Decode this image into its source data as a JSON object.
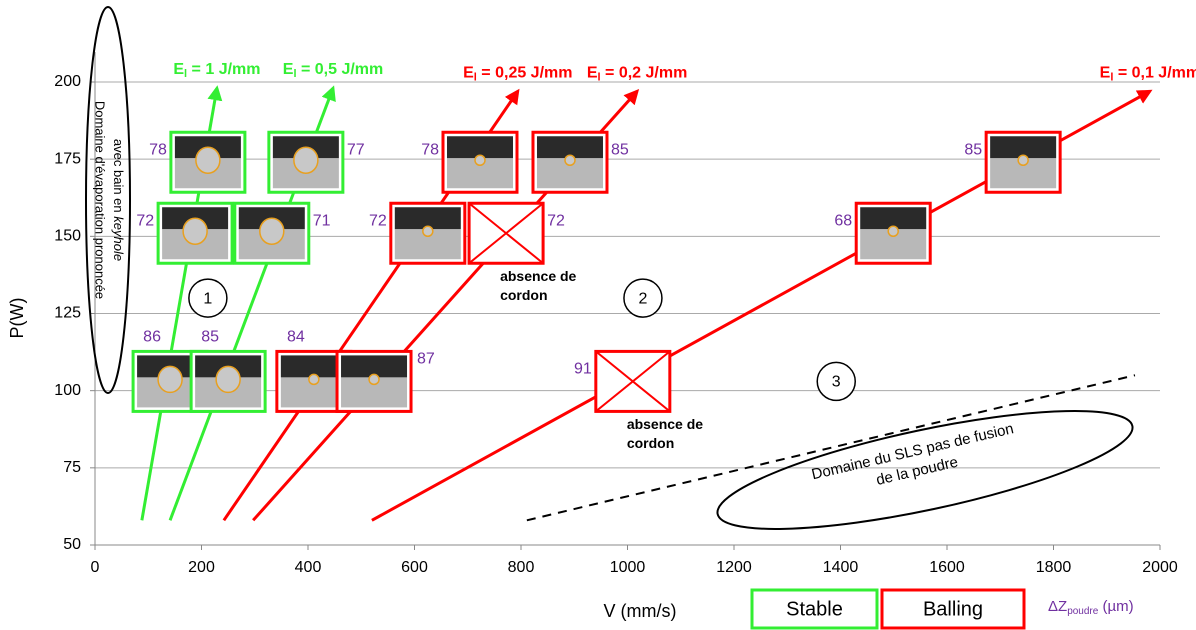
{
  "chart_data": {
    "type": "line",
    "x_label": "V (mm/s)",
    "y_label": "P(W)",
    "xlim": [
      0,
      2000
    ],
    "ylim": [
      50,
      200
    ],
    "xticks": [
      0,
      200,
      400,
      600,
      800,
      1000,
      1200,
      1400,
      1600,
      1800,
      2000
    ],
    "yticks": [
      50,
      75,
      100,
      125,
      150,
      175,
      200
    ],
    "grid": true,
    "series": [
      {
        "name_main": "E",
        "name_sub": "l",
        "name_rest": " = 1 J/mm",
        "color": "#33ee33",
        "x": [
          88,
          229
        ],
        "values": [
          58,
          198
        ]
      },
      {
        "name_main": "E",
        "name_sub": "l",
        "name_rest": " = 0,5 J/mm",
        "color": "#33ee33",
        "x": [
          141,
          447
        ],
        "values": [
          58,
          198
        ]
      },
      {
        "name_main": "E",
        "name_sub": "l",
        "name_rest": " = 0,25 J/mm",
        "color": "#ff0000",
        "x": [
          242,
          794
        ],
        "values": [
          58,
          197
        ]
      },
      {
        "name_main": "E",
        "name_sub": "l",
        "name_rest": " = 0,2 J/mm",
        "color": "#ff0000",
        "x": [
          297,
          1018
        ],
        "values": [
          58,
          197
        ]
      },
      {
        "name_main": "E",
        "name_sub": "l",
        "name_rest": " = 0,1 J/mm",
        "color": "#ff0000",
        "x": [
          520,
          1981
        ],
        "values": [
          58,
          197
        ]
      }
    ],
    "boundary": {
      "x": [
        811,
        1953
      ],
      "values": [
        58,
        105
      ],
      "color": "#000000"
    },
    "samples": [
      {
        "x": 212,
        "y": 174,
        "dz": "78",
        "status": "stable",
        "absent": false,
        "label_side": "left"
      },
      {
        "x": 396,
        "y": 174,
        "dz": "77",
        "status": "stable",
        "absent": false,
        "label_side": "right"
      },
      {
        "x": 188,
        "y": 151,
        "dz": "72",
        "status": "stable",
        "absent": false,
        "label_side": "left"
      },
      {
        "x": 332,
        "y": 151,
        "dz": "71",
        "status": "stable",
        "absent": false,
        "label_side": "right"
      },
      {
        "x": 141,
        "y": 103,
        "dz": "86",
        "status": "stable",
        "absent": false,
        "label_side": "above"
      },
      {
        "x": 250,
        "y": 103,
        "dz": "85",
        "status": "stable",
        "absent": false,
        "label_side": "above"
      },
      {
        "x": 723,
        "y": 174,
        "dz": "78",
        "status": "balling",
        "absent": false,
        "label_side": "left"
      },
      {
        "x": 892,
        "y": 174,
        "dz": "85",
        "status": "balling",
        "absent": false,
        "label_side": "right"
      },
      {
        "x": 625,
        "y": 151,
        "dz": "72",
        "status": "balling",
        "absent": false,
        "label_side": "left"
      },
      {
        "x": 772,
        "y": 151,
        "dz": "72",
        "status": "balling",
        "absent": true,
        "label_side": "right"
      },
      {
        "x": 411,
        "y": 103,
        "dz": "84",
        "status": "balling",
        "absent": false,
        "label_side": "above"
      },
      {
        "x": 524,
        "y": 103,
        "dz": "87",
        "status": "balling",
        "absent": false,
        "label_side": "above-right"
      },
      {
        "x": 1010,
        "y": 103,
        "dz": "91",
        "status": "balling",
        "absent": true,
        "label_side": "left"
      },
      {
        "x": 1499,
        "y": 151,
        "dz": "68",
        "status": "balling",
        "absent": false,
        "label_side": "left"
      },
      {
        "x": 1743,
        "y": 174,
        "dz": "85",
        "status": "balling",
        "absent": false,
        "label_side": "left"
      }
    ],
    "absence_label": [
      "absence de",
      "cordon"
    ],
    "regions": [
      {
        "label": "1",
        "x": 212,
        "y": 130
      },
      {
        "label": "2",
        "x": 1029,
        "y": 130
      },
      {
        "label": "3",
        "x": 1392,
        "y": 103
      }
    ],
    "keyhole_note": {
      "line1": "Domaine d'évaporation prononcée",
      "line2": "avec bain en ",
      "line2_italic": "keyhole"
    },
    "sls_note": {
      "line1": "Domaine du SLS pas de fusion",
      "line2": "de la poudre"
    },
    "legend": [
      {
        "label": "Stable",
        "color": "#33ee33"
      },
      {
        "label": "Balling",
        "color": "#ff0000"
      }
    ],
    "dz_legend": {
      "main": "ΔZ",
      "sub": "poudre",
      "rest": " (µm)",
      "color": "#7030a0"
    }
  }
}
